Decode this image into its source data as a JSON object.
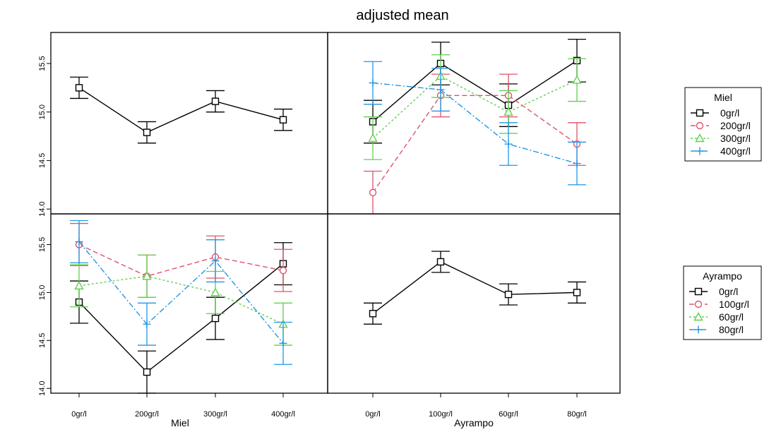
{
  "title": "adjusted mean",
  "colors": {
    "s1": "#000000",
    "s2": "#DF536B",
    "s3": "#61D04F",
    "s4": "#2297E6"
  },
  "chart_data": [
    {
      "panel": "top-left",
      "type": "line",
      "x_factor": "Miel",
      "categories": [
        "0gr/l",
        "200gr/l",
        "300gr/l",
        "400gr/l"
      ],
      "ylim": [
        13.95,
        15.82
      ],
      "yticks": [
        14.0,
        14.5,
        15.0,
        15.5
      ],
      "series": [
        {
          "style": "s1",
          "marker": "square",
          "values": [
            15.25,
            14.79,
            15.11,
            14.92
          ],
          "lower": [
            15.14,
            14.68,
            15.0,
            14.81
          ],
          "upper": [
            15.36,
            14.9,
            15.22,
            15.03
          ]
        }
      ]
    },
    {
      "panel": "top-right",
      "type": "line",
      "x_factor": "Ayrampo",
      "categories": [
        "0gr/l",
        "100gr/l",
        "60gr/l",
        "80gr/l"
      ],
      "ylim": [
        13.95,
        15.82
      ],
      "yticks": [
        14.0,
        14.5,
        15.0,
        15.5
      ],
      "series": [
        {
          "style": "s1",
          "marker": "square",
          "values": [
            14.9,
            15.5,
            15.07,
            15.53
          ],
          "lower": [
            14.68,
            15.28,
            14.85,
            15.31
          ],
          "upper": [
            15.12,
            15.72,
            15.29,
            15.75
          ]
        },
        {
          "style": "s2",
          "marker": "circle",
          "values": [
            14.17,
            15.17,
            15.17,
            14.67
          ],
          "lower": [
            13.95,
            14.95,
            14.95,
            14.45
          ],
          "upper": [
            14.39,
            15.39,
            15.39,
            14.89
          ]
        },
        {
          "style": "s3",
          "marker": "triangle",
          "values": [
            14.73,
            15.37,
            15.0,
            15.33
          ],
          "lower": [
            14.51,
            15.15,
            14.78,
            15.11
          ],
          "upper": [
            14.95,
            15.59,
            15.22,
            15.55
          ]
        },
        {
          "style": "s4",
          "marker": "plus",
          "values": [
            15.3,
            15.23,
            14.67,
            14.47
          ],
          "lower": [
            15.08,
            15.01,
            14.45,
            14.25
          ],
          "upper": [
            15.52,
            15.45,
            14.89,
            14.69
          ]
        }
      ]
    },
    {
      "panel": "bottom-left",
      "type": "line",
      "x_factor": "Miel",
      "categories": [
        "0gr/l",
        "200gr/l",
        "300gr/l",
        "400gr/l"
      ],
      "ylim": [
        13.95,
        15.82
      ],
      "yticks": [
        14.0,
        14.5,
        15.0,
        15.5
      ],
      "series": [
        {
          "style": "s1",
          "marker": "square",
          "values": [
            14.9,
            14.17,
            14.73,
            15.3
          ],
          "lower": [
            14.68,
            13.95,
            14.51,
            15.08
          ],
          "upper": [
            15.12,
            14.39,
            14.95,
            15.52
          ]
        },
        {
          "style": "s2",
          "marker": "circle",
          "values": [
            15.5,
            15.17,
            15.37,
            15.23
          ],
          "lower": [
            15.28,
            14.95,
            15.15,
            15.01
          ],
          "upper": [
            15.72,
            15.39,
            15.59,
            15.45
          ]
        },
        {
          "style": "s3",
          "marker": "triangle",
          "values": [
            15.07,
            15.17,
            15.0,
            14.67
          ],
          "lower": [
            14.85,
            14.95,
            14.78,
            14.45
          ],
          "upper": [
            15.29,
            15.39,
            15.22,
            14.89
          ]
        },
        {
          "style": "s4",
          "marker": "plus",
          "values": [
            15.53,
            14.67,
            15.33,
            14.47
          ],
          "lower": [
            15.31,
            14.45,
            15.11,
            14.25
          ],
          "upper": [
            15.75,
            14.89,
            15.55,
            14.69
          ]
        }
      ]
    },
    {
      "panel": "bottom-right",
      "type": "line",
      "x_factor": "Ayrampo",
      "categories": [
        "0gr/l",
        "100gr/l",
        "60gr/l",
        "80gr/l"
      ],
      "ylim": [
        13.95,
        15.82
      ],
      "yticks": [
        14.0,
        14.5,
        15.0,
        15.5
      ],
      "series": [
        {
          "style": "s1",
          "marker": "square",
          "values": [
            14.78,
            15.32,
            14.98,
            15.0
          ],
          "lower": [
            14.67,
            15.21,
            14.87,
            14.89
          ],
          "upper": [
            14.89,
            15.43,
            15.09,
            15.11
          ]
        }
      ]
    }
  ],
  "x_labels": {
    "left": "Miel",
    "right": "Ayrampo"
  },
  "legends": [
    {
      "title": "Miel",
      "placement": "right-top",
      "entries": [
        {
          "label": "0gr/l",
          "style": "s1",
          "marker": "square"
        },
        {
          "label": "200gr/l",
          "style": "s2",
          "marker": "circle"
        },
        {
          "label": "300gr/l",
          "style": "s3",
          "marker": "triangle"
        },
        {
          "label": "400gr/l",
          "style": "s4",
          "marker": "plus"
        }
      ]
    },
    {
      "title": "Ayrampo",
      "placement": "right-bottom",
      "entries": [
        {
          "label": "0gr/l",
          "style": "s1",
          "marker": "square"
        },
        {
          "label": "100gr/l",
          "style": "s2",
          "marker": "circle"
        },
        {
          "label": "60gr/l",
          "style": "s3",
          "marker": "triangle"
        },
        {
          "label": "80gr/l",
          "style": "s4",
          "marker": "plus"
        }
      ]
    }
  ]
}
